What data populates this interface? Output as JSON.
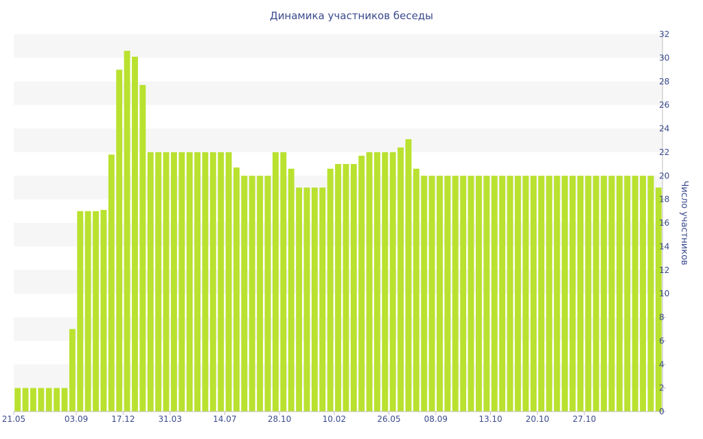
{
  "chart_data": {
    "type": "bar",
    "title": "Динамика участников беседы",
    "ylabel": "Число участников",
    "xlabel": "",
    "ylim": [
      0,
      32
    ],
    "yticks": [
      0,
      2,
      4,
      6,
      8,
      10,
      12,
      14,
      16,
      18,
      20,
      22,
      24,
      26,
      28,
      30,
      32
    ],
    "y_axis_side": "right",
    "grid": "alternating horizontal bands",
    "legend": "none",
    "bar_color": "#b9e12f",
    "text_color": "#3a4a8c",
    "x_tick_labels": [
      {
        "label": "21.05",
        "index": 0
      },
      {
        "label": "03.09",
        "index": 7.5
      },
      {
        "label": "17.12",
        "index": 13.5
      },
      {
        "label": "31.03",
        "index": 19.5
      },
      {
        "label": "14.07",
        "index": 26.5
      },
      {
        "label": "28.10",
        "index": 33.5
      },
      {
        "label": "10.02",
        "index": 40.5
      },
      {
        "label": "26.05",
        "index": 47.5
      },
      {
        "label": "08.09",
        "index": 53.5
      },
      {
        "label": "13.10",
        "index": 60.5
      },
      {
        "label": "20.10",
        "index": 66.5
      },
      {
        "label": "27.10",
        "index": 72.5
      }
    ],
    "values": [
      2,
      2,
      2,
      2,
      2,
      2,
      2,
      7,
      17,
      17,
      17,
      17.1,
      21.8,
      29,
      30.6,
      30.1,
      27.7,
      22,
      22,
      22,
      22,
      22,
      22,
      22,
      22,
      22,
      22,
      22,
      20.7,
      20,
      20,
      20,
      20,
      22,
      22,
      20.6,
      19,
      19,
      19,
      19,
      20.6,
      21,
      21,
      21,
      21.7,
      22,
      22,
      22,
      22,
      22.4,
      23.1,
      20.6,
      20,
      20,
      20,
      20,
      20,
      20,
      20,
      20,
      20,
      20,
      20,
      20,
      20,
      20,
      20,
      20,
      20,
      20,
      20,
      20,
      20,
      20,
      20,
      20,
      20,
      20,
      20,
      20,
      20,
      20,
      19
    ]
  }
}
